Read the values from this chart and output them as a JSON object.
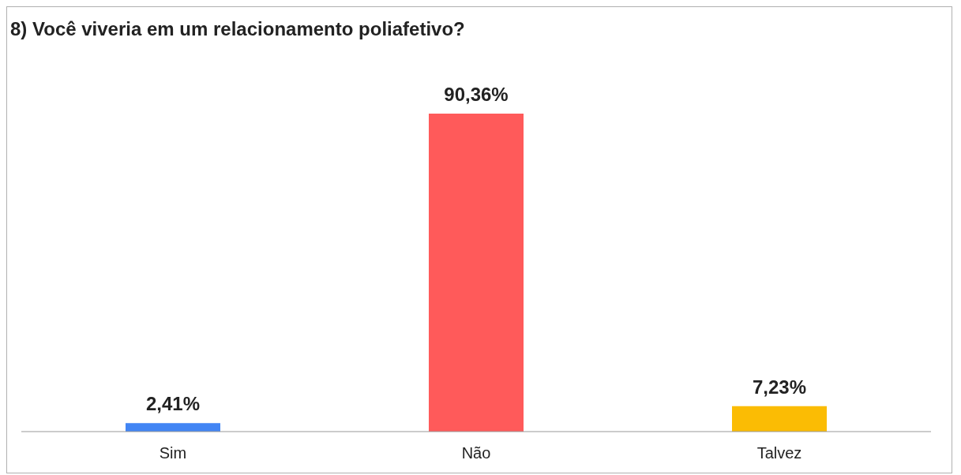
{
  "chart_data": {
    "type": "bar",
    "title": "8) Você viveria em um relacionamento poliafetivo?",
    "categories": [
      "Sim",
      "Não",
      "Talvez"
    ],
    "values": [
      2.41,
      90.36,
      7.23
    ],
    "colors": [
      "#4285f4",
      "#ff5a5a",
      "#fbbc04"
    ],
    "value_labels": [
      "2,41%",
      "90,36%",
      "7,23%"
    ],
    "grid": false
  }
}
